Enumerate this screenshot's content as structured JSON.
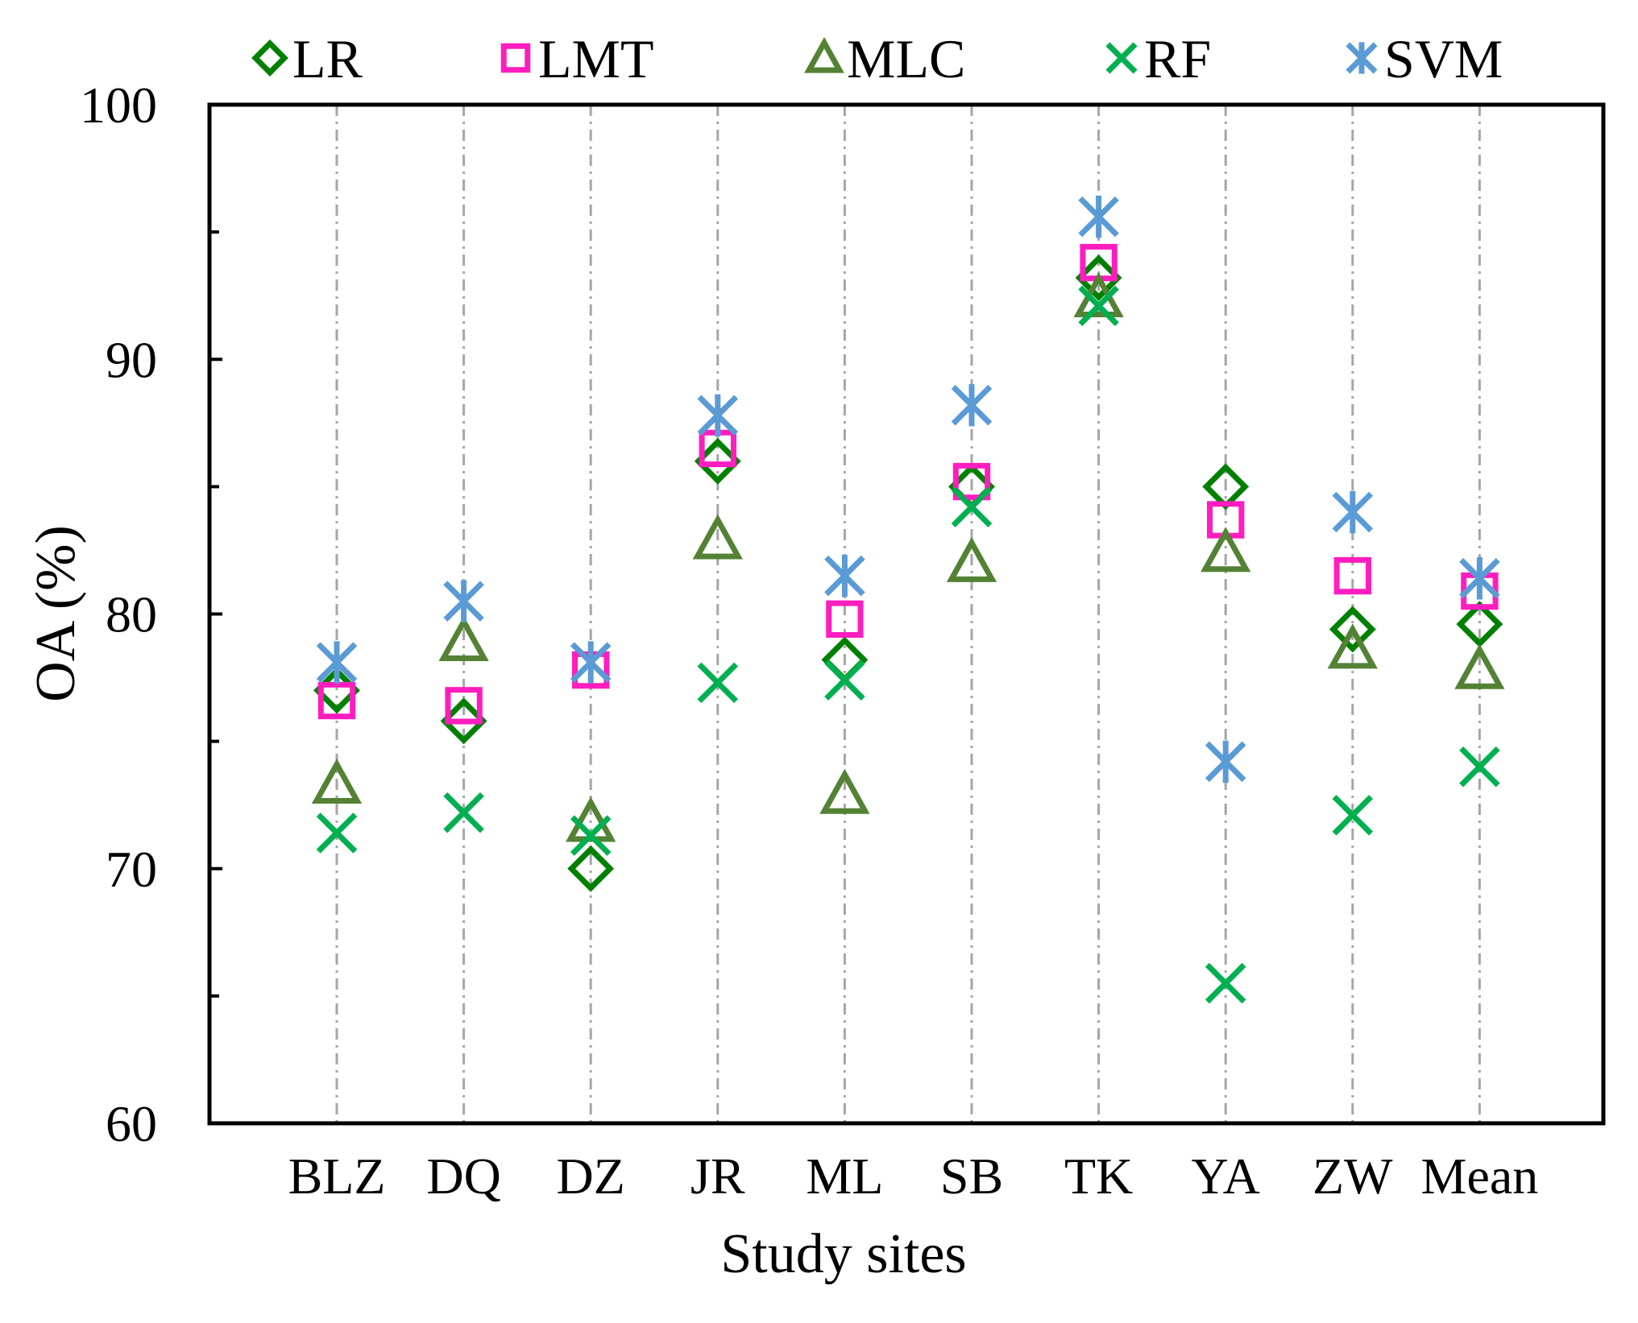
{
  "chart_data": {
    "type": "scatter",
    "xlabel": "Study sites",
    "ylabel": "OA (%)",
    "categories": [
      "BLZ",
      "DQ",
      "DZ",
      "JR",
      "ML",
      "SB",
      "TK",
      "YA",
      "ZW",
      "Mean"
    ],
    "ylim": [
      60,
      100
    ],
    "yticks": [
      60,
      70,
      80,
      90,
      100
    ],
    "y_minor_ticks": [
      65,
      75,
      85,
      95
    ],
    "grid": "vertical dash-dot lines at each category",
    "legend": "top",
    "series": [
      {
        "name": "LR",
        "marker": "diamond",
        "color": "#008000",
        "values": [
          77.0,
          75.8,
          70.0,
          86.0,
          78.2,
          85.0,
          93.2,
          85.0,
          79.4,
          79.6
        ]
      },
      {
        "name": "LMT",
        "marker": "square",
        "color": "#ff1dbf",
        "values": [
          76.6,
          76.4,
          77.8,
          86.5,
          79.8,
          85.2,
          93.8,
          83.7,
          81.5,
          80.9
        ]
      },
      {
        "name": "MLC",
        "marker": "triangle",
        "color": "#548235",
        "values": [
          73.3,
          78.9,
          71.8,
          82.9,
          72.9,
          82.0,
          92.4,
          82.4,
          78.6,
          77.8
        ]
      },
      {
        "name": "RF",
        "marker": "x",
        "color": "#00b050",
        "values": [
          71.4,
          72.2,
          71.3,
          77.3,
          77.4,
          84.2,
          92.1,
          65.5,
          72.1,
          74.0
        ]
      },
      {
        "name": "SVM",
        "marker": "asterisk",
        "color": "#5b9bd5",
        "values": [
          78.1,
          80.5,
          78.1,
          87.8,
          81.5,
          88.2,
          95.6,
          74.2,
          84.0,
          81.4
        ]
      }
    ]
  }
}
